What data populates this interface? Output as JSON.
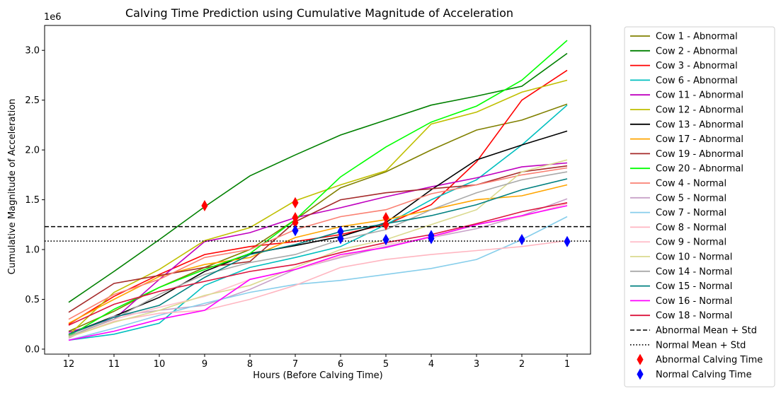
{
  "chart_data": {
    "type": "line",
    "title": "Calving Time Prediction using Cumulative Magnitude of Acceleration",
    "xlabel": "Hours (Before Calving Time)",
    "ylabel": "Cumulative Magnitude of Acceleration",
    "y_offset_label": "1e6",
    "x": [
      "12",
      "11",
      "10",
      "9",
      "8",
      "7",
      "6",
      "5",
      "4",
      "3",
      "2",
      "1"
    ],
    "y_ticks": [
      "0.0",
      "0.5",
      "1.0",
      "1.5",
      "2.0",
      "2.5",
      "3.0"
    ],
    "ylim": [
      -0.05,
      3.25
    ],
    "y_scale": "×1e6",
    "grid": false,
    "legend_position": "outside-right",
    "series": [
      {
        "name": "Cow 1 - Abnormal",
        "color": "#808000",
        "values": [
          0.18,
          0.38,
          0.62,
          0.82,
          1.0,
          1.3,
          1.62,
          1.78,
          2.0,
          2.2,
          2.3,
          2.46
        ]
      },
      {
        "name": "Cow 2 - Abnormal",
        "color": "#008000",
        "values": [
          0.47,
          0.78,
          1.1,
          1.43,
          1.74,
          1.95,
          2.15,
          2.3,
          2.45,
          2.54,
          2.64,
          2.97
        ]
      },
      {
        "name": "Cow 3 - Abnormal",
        "color": "#ff0000",
        "values": [
          0.25,
          0.53,
          0.75,
          0.95,
          1.03,
          1.08,
          1.15,
          1.25,
          1.45,
          1.88,
          2.5,
          2.8
        ]
      },
      {
        "name": "Cow 6 - Abnormal",
        "color": "#00bfbf",
        "values": [
          0.09,
          0.15,
          0.26,
          0.64,
          0.82,
          0.92,
          1.03,
          1.25,
          1.5,
          1.7,
          2.05,
          2.45
        ]
      },
      {
        "name": "Cow 11 - Abnormal",
        "color": "#bf00bf",
        "values": [
          0.17,
          0.3,
          0.7,
          1.08,
          1.17,
          1.32,
          1.42,
          1.53,
          1.63,
          1.72,
          1.83,
          1.87
        ]
      },
      {
        "name": "Cow 12 - Abnormal",
        "color": "#bfbf00",
        "values": [
          0.14,
          0.57,
          0.8,
          1.09,
          1.22,
          1.49,
          1.65,
          1.79,
          2.26,
          2.38,
          2.58,
          2.7
        ]
      },
      {
        "name": "Cow 13 - Abnormal",
        "color": "#000000",
        "values": [
          0.15,
          0.33,
          0.52,
          0.78,
          0.96,
          1.04,
          1.13,
          1.27,
          1.6,
          1.9,
          2.05,
          2.19
        ]
      },
      {
        "name": "Cow 17 - Abnormal",
        "color": "#ffa500",
        "values": [
          0.26,
          0.5,
          0.73,
          0.85,
          0.92,
          1.12,
          1.23,
          1.3,
          1.4,
          1.5,
          1.54,
          1.65
        ]
      },
      {
        "name": "Cow 19 - Abnormal",
        "color": "#a52a2a",
        "values": [
          0.37,
          0.66,
          0.74,
          0.82,
          0.88,
          1.28,
          1.5,
          1.57,
          1.61,
          1.65,
          1.78,
          1.84
        ]
      },
      {
        "name": "Cow 20 - Abnormal",
        "color": "#00ff00",
        "values": [
          0.13,
          0.4,
          0.62,
          0.8,
          0.96,
          1.3,
          1.73,
          2.03,
          2.28,
          2.44,
          2.7,
          3.1
        ]
      },
      {
        "name": "Cow 4 - Normal",
        "color": "#fa8072",
        "values": [
          0.3,
          0.55,
          0.7,
          0.92,
          1.0,
          1.2,
          1.33,
          1.4,
          1.56,
          1.65,
          1.75,
          1.82
        ]
      },
      {
        "name": "Cow 5 - Normal",
        "color": "#c8a2c8",
        "values": [
          0.11,
          0.33,
          0.39,
          0.44,
          0.6,
          0.8,
          0.92,
          1.03,
          1.12,
          1.21,
          1.34,
          1.51
        ]
      },
      {
        "name": "Cow 7 - Normal",
        "color": "#87ceeb",
        "values": [
          0.09,
          0.21,
          0.34,
          0.46,
          0.57,
          0.65,
          0.69,
          0.75,
          0.81,
          0.9,
          1.1,
          1.33
        ]
      },
      {
        "name": "Cow 8 - Normal",
        "color": "#ffb6c1",
        "values": [
          0.12,
          0.28,
          0.36,
          0.39,
          0.5,
          0.64,
          0.82,
          0.9,
          0.95,
          0.99,
          1.03,
          1.09
        ]
      },
      {
        "name": "Cow 9 - Normal",
        "color": "#ffc0cb",
        "values": [
          0.15,
          0.3,
          0.42,
          0.53,
          0.7,
          0.8,
          0.93,
          1.05,
          1.12,
          1.25,
          1.33,
          1.46
        ]
      },
      {
        "name": "Cow 10 - Normal",
        "color": "#dada8f",
        "values": [
          0.12,
          0.27,
          0.39,
          0.54,
          0.64,
          0.82,
          1.0,
          1.1,
          1.25,
          1.4,
          1.78,
          1.9
        ]
      },
      {
        "name": "Cow 14 - Normal",
        "color": "#a9a9a9",
        "values": [
          0.13,
          0.3,
          0.55,
          0.75,
          0.87,
          0.95,
          1.1,
          1.2,
          1.4,
          1.57,
          1.7,
          1.78
        ]
      },
      {
        "name": "Cow 15 - Normal",
        "color": "#008080",
        "values": [
          0.15,
          0.32,
          0.44,
          0.72,
          0.95,
          1.05,
          1.18,
          1.26,
          1.34,
          1.45,
          1.6,
          1.71
        ]
      },
      {
        "name": "Cow 16 - Normal",
        "color": "#ff00ff",
        "values": [
          0.09,
          0.18,
          0.3,
          0.39,
          0.7,
          0.8,
          0.95,
          1.02,
          1.13,
          1.25,
          1.34,
          1.44
        ]
      },
      {
        "name": "Cow 18 - Normal",
        "color": "#dc143c",
        "values": [
          0.24,
          0.45,
          0.58,
          0.68,
          0.78,
          0.85,
          0.97,
          1.07,
          1.15,
          1.26,
          1.38,
          1.47
        ]
      }
    ],
    "reference_lines": [
      {
        "name": "Abnormal Mean + Std",
        "value": 1.23,
        "style": "dashed",
        "color": "#000000"
      },
      {
        "name": "Normal Mean + Std",
        "value": 1.085,
        "style": "dotted",
        "color": "#000000"
      }
    ],
    "markers": [
      {
        "name": "Abnormal Calving Time",
        "color": "#ff0000",
        "points": [
          [
            "9",
            1.44
          ],
          [
            "7",
            1.47
          ],
          [
            "7",
            1.32
          ],
          [
            "7",
            1.27
          ],
          [
            "5",
            1.32
          ],
          [
            "5",
            1.25
          ]
        ]
      },
      {
        "name": "Normal Calving Time",
        "color": "#0000ff",
        "points": [
          [
            "7",
            1.19
          ],
          [
            "6",
            1.18
          ],
          [
            "6",
            1.11
          ],
          [
            "5",
            1.1
          ],
          [
            "4",
            1.14
          ],
          [
            "4",
            1.11
          ],
          [
            "2",
            1.1
          ],
          [
            "1",
            1.08
          ]
        ]
      }
    ]
  }
}
